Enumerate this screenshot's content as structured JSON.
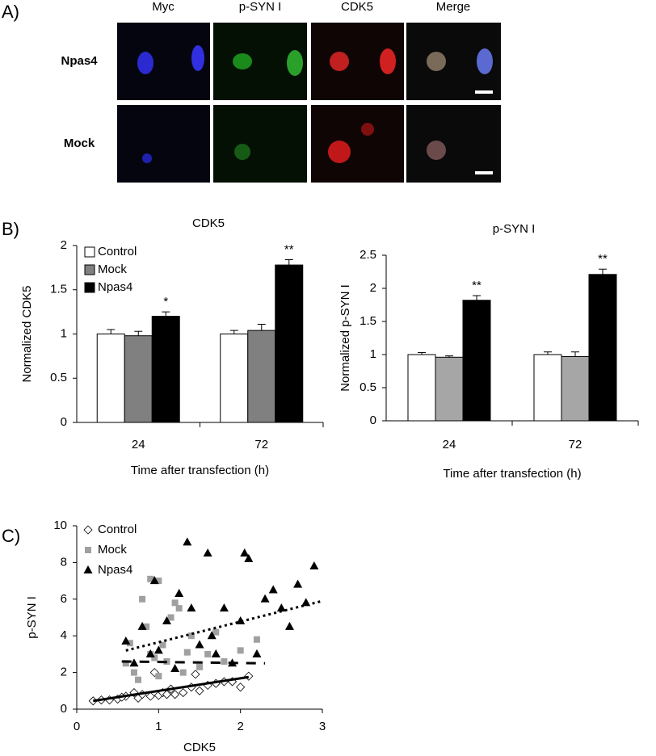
{
  "panel_a": {
    "label": "A)",
    "columns": [
      "Myc",
      "p-SYN I",
      "CDK5",
      "Merge"
    ],
    "rows": [
      "Npas4",
      "Mock"
    ]
  },
  "chart_data": [
    {
      "type": "bar",
      "panel_label": "B)",
      "title": "CDK5",
      "y_label": "Normalized CDK5",
      "x_label": "Time after transfection (h)",
      "categories": [
        "24",
        "72"
      ],
      "ylim": [
        0,
        2
      ],
      "yticks": [
        0,
        0.5,
        1,
        1.5,
        2
      ],
      "legend": "top-left",
      "series": [
        {
          "name": "Control",
          "color": "#ffffff",
          "values": [
            1.0,
            1.0
          ],
          "errors": [
            0.05,
            0.04
          ]
        },
        {
          "name": "Mock",
          "color": "#808080",
          "values": [
            0.98,
            1.04
          ],
          "errors": [
            0.05,
            0.07
          ]
        },
        {
          "name": "Npas4",
          "color": "#000000",
          "values": [
            1.2,
            1.78
          ],
          "errors": [
            0.05,
            0.06
          ],
          "annotations": [
            "*",
            "**"
          ]
        }
      ]
    },
    {
      "type": "bar",
      "title": "p-SYN I",
      "y_label": "Normalized p-SYN I",
      "x_label": "Time after transfection (h)",
      "categories": [
        "24",
        "72"
      ],
      "ylim": [
        0,
        2.5
      ],
      "yticks": [
        0,
        0.5,
        1,
        1.5,
        2,
        2.5
      ],
      "series": [
        {
          "color": "#ffffff",
          "values": [
            1.0,
            1.0
          ],
          "errors": [
            0.03,
            0.04
          ]
        },
        {
          "color": "#a6a6a6",
          "values": [
            0.96,
            0.97
          ],
          "errors": [
            0.02,
            0.07
          ]
        },
        {
          "color": "#000000",
          "values": [
            1.82,
            2.21
          ],
          "errors": [
            0.07,
            0.08
          ],
          "annotations": [
            "**",
            "**"
          ]
        }
      ]
    },
    {
      "type": "scatter",
      "panel_label": "C)",
      "y_label": "p-SYN I",
      "x_label": "CDK5",
      "xlim": [
        0,
        3
      ],
      "xticks": [
        0,
        1,
        2,
        3
      ],
      "ylim": [
        0,
        10
      ],
      "yticks": [
        0,
        2,
        4,
        6,
        8,
        10
      ],
      "legend": "top-left",
      "series": [
        {
          "name": "Control",
          "marker": "diamond",
          "color": "#ffffff",
          "x": [
            0.2,
            0.3,
            0.4,
            0.5,
            0.6,
            0.7,
            0.75,
            0.8,
            0.9,
            1.0,
            1.05,
            1.1,
            1.2,
            1.3,
            1.4,
            1.5,
            1.6,
            1.7,
            1.8,
            1.9,
            2.0,
            2.1,
            0.95,
            1.15,
            1.45,
            0.55
          ],
          "values": [
            0.45,
            0.5,
            0.5,
            0.55,
            0.7,
            0.9,
            0.6,
            0.8,
            0.7,
            0.75,
            0.9,
            0.8,
            0.8,
            0.9,
            1.2,
            1.0,
            1.3,
            1.4,
            1.5,
            1.5,
            1.2,
            1.8,
            2.0,
            1.1,
            1.9,
            0.65
          ],
          "trend": {
            "x": [
              0.2,
              2.1
            ],
            "values": [
              0.45,
              1.75
            ],
            "dash": "solid"
          }
        },
        {
          "name": "Mock",
          "marker": "square",
          "color": "#a0a0a0",
          "x": [
            0.6,
            0.65,
            0.7,
            0.8,
            0.85,
            0.9,
            0.95,
            1.0,
            1.05,
            1.1,
            1.15,
            1.2,
            1.3,
            1.35,
            1.4,
            1.5,
            1.6,
            1.7,
            1.8,
            2.0,
            2.2,
            0.75,
            1.0,
            1.25,
            0.9
          ],
          "values": [
            2.5,
            3.6,
            2.0,
            6.0,
            4.5,
            7.1,
            2.8,
            7.0,
            3.5,
            2.6,
            5.0,
            5.8,
            2.0,
            3.1,
            4.0,
            2.3,
            3.0,
            4.2,
            2.6,
            3.2,
            3.8,
            1.6,
            1.8,
            5.5,
            3.0
          ],
          "trend": {
            "x": [
              0.55,
              2.3
            ],
            "values": [
              2.6,
              2.5
            ],
            "dash": "dashed"
          }
        },
        {
          "name": "Npas4",
          "marker": "triangle",
          "color": "#000000",
          "x": [
            0.6,
            0.7,
            0.8,
            0.9,
            1.0,
            1.1,
            1.2,
            1.35,
            1.4,
            1.5,
            1.6,
            1.7,
            1.8,
            1.9,
            2.0,
            2.1,
            2.2,
            2.3,
            2.4,
            2.5,
            2.6,
            2.7,
            2.8,
            2.9,
            0.95,
            1.25,
            1.65,
            2.05
          ],
          "values": [
            3.7,
            2.5,
            4.5,
            3.0,
            3.2,
            4.8,
            2.2,
            9.1,
            5.5,
            3.5,
            8.5,
            3.0,
            5.5,
            2.5,
            4.8,
            8.2,
            3.0,
            6.0,
            6.5,
            5.5,
            4.5,
            6.8,
            5.8,
            7.8,
            7.0,
            6.3,
            4.0,
            8.5
          ],
          "trend": {
            "x": [
              0.6,
              3.0
            ],
            "values": [
              3.2,
              5.9
            ],
            "dash": "dotted"
          }
        }
      ]
    }
  ]
}
